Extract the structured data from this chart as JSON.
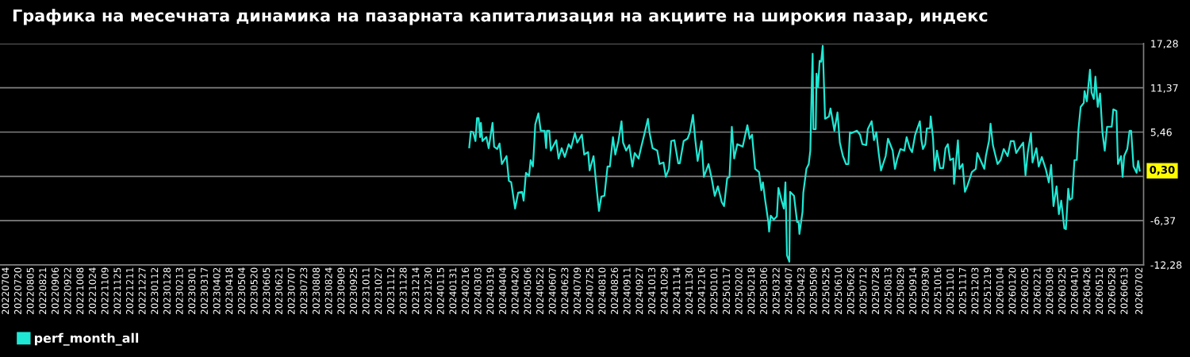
{
  "chart_data": {
    "type": "line",
    "title": "Графика на месечната динамика на пазарната капитализация на акциите на широкия пазар, индекс",
    "x": [
      "2024-02-20",
      "2024-02-22",
      "2024-02-25",
      "2024-02-28",
      "2024-03-01",
      "2024-03-03",
      "2024-03-05",
      "2024-03-06",
      "2024-03-08",
      "2024-03-13",
      "2024-03-16",
      "2024-03-21",
      "2024-03-23",
      "2024-03-27",
      "2024-03-30",
      "2024-04-02",
      "2024-04-08",
      "2024-04-11",
      "2024-04-14",
      "2024-04-19",
      "2024-04-23",
      "2024-04-28",
      "2024-04-30",
      "2024-05-03",
      "2024-05-07",
      "2024-05-09",
      "2024-05-12",
      "2024-05-15",
      "2024-05-19",
      "2024-05-22",
      "2024-05-27",
      "2024-05-29",
      "2024-05-30",
      "2024-06-02",
      "2024-06-04",
      "2024-06-11",
      "2024-06-14",
      "2024-06-18",
      "2024-06-22",
      "2024-06-27",
      "2024-06-30",
      "2024-07-05",
      "2024-07-08",
      "2024-07-14",
      "2024-07-17",
      "2024-07-22",
      "2024-07-24",
      "2024-07-29",
      "2024-08-02",
      "2024-08-05",
      "2024-08-08",
      "2024-08-12",
      "2024-08-16",
      "2024-08-19",
      "2024-08-23",
      "2024-08-26",
      "2024-08-30",
      "2024-09-03",
      "2024-09-05",
      "2024-09-09",
      "2024-09-13",
      "2024-09-17",
      "2024-09-20",
      "2024-09-25",
      "2024-09-28",
      "2024-10-03",
      "2024-10-07",
      "2024-10-09",
      "2024-10-13",
      "2024-10-19",
      "2024-10-22",
      "2024-10-27",
      "2024-10-30",
      "2024-11-03",
      "2024-11-06",
      "2024-11-10",
      "2024-11-15",
      "2024-11-17",
      "2024-11-22",
      "2024-11-27",
      "2024-11-30",
      "2024-12-04",
      "2024-12-07",
      "2024-12-10",
      "2024-12-15",
      "2024-12-18",
      "2024-12-24",
      "2024-12-28",
      "2025-01-01",
      "2025-01-05",
      "2025-01-10",
      "2025-01-13",
      "2025-01-17",
      "2025-01-20",
      "2025-01-23",
      "2025-01-26",
      "2025-01-30",
      "2025-02-06",
      "2025-02-12",
      "2025-02-15",
      "2025-02-18",
      "2025-02-22",
      "2025-02-27",
      "2025-03-02",
      "2025-03-04",
      "2025-03-07",
      "2025-03-11",
      "2025-03-12",
      "2025-03-14",
      "2025-03-18",
      "2025-03-22",
      "2025-03-24",
      "2025-03-28",
      "2025-03-31",
      "2025-04-02",
      "2025-04-04",
      "2025-04-07",
      "2025-04-08",
      "2025-04-13",
      "2025-04-17",
      "2025-04-19",
      "2025-04-20",
      "2025-04-24",
      "2025-04-25",
      "2025-04-29",
      "2025-05-02",
      "2025-05-04",
      "2025-05-06",
      "2025-05-07",
      "2025-05-08",
      "2025-05-11",
      "2025-05-12",
      "2025-05-14",
      "2025-05-16",
      "2025-05-18",
      "2025-05-20",
      "2025-05-23",
      "2025-05-28",
      "2025-05-30",
      "2025-06-01",
      "2025-06-04",
      "2025-06-08",
      "2025-06-11",
      "2025-06-15",
      "2025-06-19",
      "2025-06-22",
      "2025-06-24",
      "2025-06-26",
      "2025-07-03",
      "2025-07-07",
      "2025-07-10",
      "2025-07-15",
      "2025-07-17",
      "2025-07-22",
      "2025-07-25",
      "2025-07-28",
      "2025-07-31",
      "2025-08-03",
      "2025-08-09",
      "2025-08-12",
      "2025-08-18",
      "2025-08-21",
      "2025-08-24",
      "2025-08-28",
      "2025-09-02",
      "2025-09-05",
      "2025-09-09",
      "2025-09-12",
      "2025-09-16",
      "2025-09-22",
      "2025-09-24",
      "2025-09-26",
      "2025-09-29",
      "2025-10-01",
      "2025-10-05",
      "2025-10-06",
      "2025-10-09",
      "2025-10-11",
      "2025-10-14",
      "2025-10-18",
      "2025-10-22",
      "2025-10-25",
      "2025-10-28",
      "2025-10-31",
      "2025-11-04",
      "2025-11-05",
      "2025-11-10",
      "2025-11-12",
      "2025-11-16",
      "2025-11-19",
      "2025-11-22",
      "2025-11-28",
      "2025-12-03",
      "2025-12-05",
      "2025-12-09",
      "2025-12-14",
      "2025-12-16",
      "2025-12-20",
      "2025-12-22",
      "2025-12-25",
      "2025-12-31",
      "2026-01-04",
      "2026-01-08",
      "2026-01-13",
      "2026-01-17",
      "2026-01-21",
      "2026-01-24",
      "2026-01-28",
      "2026-02-02",
      "2026-02-05",
      "2026-02-08",
      "2026-02-12",
      "2026-02-14",
      "2026-02-19",
      "2026-02-22",
      "2026-02-26",
      "2026-03-03",
      "2026-03-07",
      "2026-03-10",
      "2026-03-13",
      "2026-03-17",
      "2026-03-20",
      "2026-03-23",
      "2026-03-27",
      "2026-03-29",
      "2026-04-01",
      "2026-04-03",
      "2026-04-06",
      "2026-04-09",
      "2026-04-12",
      "2026-04-14",
      "2026-04-17",
      "2026-04-21",
      "2026-04-22",
      "2026-04-25",
      "2026-04-29",
      "2026-05-01",
      "2026-05-04",
      "2026-05-06",
      "2026-05-09",
      "2026-05-12",
      "2026-05-15",
      "2026-05-18",
      "2026-05-21",
      "2026-05-27",
      "2026-05-29",
      "2026-06-02",
      "2026-06-04",
      "2026-06-08",
      "2026-06-10",
      "2026-06-12",
      "2026-06-16",
      "2026-06-19",
      "2026-06-21",
      "2026-06-24",
      "2026-06-28",
      "2026-06-30",
      "2026-07-02"
    ],
    "series": [
      {
        "name": "perf_month_all",
        "color": "#1ee8d4",
        "values": [
          3.41,
          5.53,
          5.46,
          4.26,
          7.33,
          7.33,
          4.79,
          6.7,
          4.26,
          4.79,
          3.31,
          6.7,
          3.52,
          3.2,
          3.94,
          1.19,
          2.25,
          -1.04,
          -1.25,
          -4.75,
          -2.63,
          -2.52,
          -3.69,
          0.02,
          -0.4,
          1.72,
          0.87,
          6.49,
          7.97,
          5.64,
          5.64,
          3.31,
          5.64,
          5.64,
          2.99,
          4.37,
          1.93,
          3.31,
          2.14,
          3.84,
          3.31,
          5.32,
          4.05,
          5.11,
          2.46,
          2.78,
          0.34,
          2.25,
          -2.1,
          -5.07,
          -3.16,
          -3.05,
          0.87,
          0.87,
          4.79,
          2.46,
          4.26,
          6.91,
          4.05,
          2.99,
          3.73,
          0.87,
          2.67,
          1.93,
          3.31,
          5.43,
          7.23,
          5.43,
          3.31,
          2.99,
          1.19,
          1.4,
          -0.51,
          0.55,
          4.26,
          4.37,
          1.29,
          1.29,
          4.26,
          4.58,
          5.43,
          7.76,
          4.37,
          1.61,
          4.26,
          -0.51,
          1.19,
          -0.72,
          -3.05,
          -1.78,
          -3.9,
          -4.43,
          -0.72,
          -0.51,
          6.17,
          1.93,
          3.84,
          3.52,
          6.38,
          4.58,
          5.11,
          0.55,
          0.13,
          -2.31,
          -1.25,
          -3.69,
          -6.55,
          -7.82,
          -5.7,
          -6.23,
          -5.81,
          -1.99,
          -3.69,
          -4.75,
          -1.25,
          -11.0,
          -11.85,
          -2.52,
          -3.05,
          -6.55,
          -6.55,
          -8.14,
          -5.17,
          -2.63,
          0.55,
          1.19,
          2.99,
          12.21,
          15.92,
          5.85,
          5.85,
          13.27,
          11.47,
          14.97,
          14.86,
          16.98,
          7.23,
          7.55,
          8.61,
          7.44,
          5.64,
          8.08,
          4.05,
          2.25,
          1.19,
          1.19,
          5.43,
          5.32,
          5.64,
          5.11,
          3.84,
          3.73,
          5.85,
          6.91,
          4.37,
          5.43,
          2.67,
          0.34,
          2.25,
          4.58,
          2.99,
          0.55,
          1.93,
          3.2,
          2.99,
          4.79,
          3.31,
          2.78,
          5.11,
          6.91,
          4.37,
          3.2,
          3.84,
          5.96,
          5.96,
          7.55,
          4.58,
          0.34,
          2.99,
          0.66,
          0.66,
          3.31,
          3.84,
          1.72,
          1.93,
          -1.46,
          4.37,
          0.55,
          1.19,
          -2.52,
          -1.78,
          0.13,
          0.55,
          2.67,
          1.72,
          0.55,
          2.25,
          4.26,
          6.59,
          3.73,
          1.19,
          1.72,
          3.2,
          2.25,
          4.26,
          4.26,
          2.67,
          3.31,
          4.05,
          -0.3,
          2.78,
          5.32,
          1.4,
          3.31,
          0.87,
          2.14,
          0.55,
          -1.25,
          1.08,
          -4.43,
          -1.78,
          -5.49,
          -3.69,
          -7.4,
          -7.51,
          -2.1,
          -3.58,
          -3.37,
          1.72,
          1.72,
          5.64,
          8.82,
          9.35,
          10.94,
          9.56,
          13.8,
          10.73,
          9.88,
          12.85,
          8.82,
          10.62,
          5.43,
          2.99,
          6.17,
          6.17,
          8.5,
          8.29,
          1.19,
          2.25,
          -0.51,
          2.25,
          3.2,
          5.64,
          5.64,
          0.87,
          0.02,
          1.61,
          0.3
        ]
      }
    ],
    "xlim": [
      "2022-06-26",
      "2026-07-07"
    ],
    "xticks": [
      {
        "value": "2022-07-04",
        "label": "20220704"
      },
      {
        "value": "2022-07-20",
        "label": "20220720"
      },
      {
        "value": "2022-08-05",
        "label": "20220805"
      },
      {
        "value": "2022-08-21",
        "label": "20220821"
      },
      {
        "value": "2022-09-06",
        "label": "20220906"
      },
      {
        "value": "2022-09-22",
        "label": "20220922"
      },
      {
        "value": "2022-10-08",
        "label": "20221008"
      },
      {
        "value": "2022-10-24",
        "label": "20221024"
      },
      {
        "value": "2022-11-09",
        "label": "20221109"
      },
      {
        "value": "2022-11-25",
        "label": "20221125"
      },
      {
        "value": "2022-12-11",
        "label": "20221211"
      },
      {
        "value": "2022-12-27",
        "label": "20221227"
      },
      {
        "value": "2023-01-12",
        "label": "20230112"
      },
      {
        "value": "2023-01-28",
        "label": "20230128"
      },
      {
        "value": "2023-02-13",
        "label": "20230213"
      },
      {
        "value": "2023-03-01",
        "label": "20230301"
      },
      {
        "value": "2023-03-17",
        "label": "20230317"
      },
      {
        "value": "2023-04-02",
        "label": "20230402"
      },
      {
        "value": "2023-04-18",
        "label": "20230418"
      },
      {
        "value": "2023-05-04",
        "label": "20230504"
      },
      {
        "value": "2023-05-20",
        "label": "20230520"
      },
      {
        "value": "2023-06-05",
        "label": "20230605"
      },
      {
        "value": "2023-06-21",
        "label": "20230621"
      },
      {
        "value": "2023-07-07",
        "label": "20230707"
      },
      {
        "value": "2023-07-23",
        "label": "20230723"
      },
      {
        "value": "2023-08-08",
        "label": "20230808"
      },
      {
        "value": "2023-08-24",
        "label": "20230824"
      },
      {
        "value": "2023-09-09",
        "label": "20230909"
      },
      {
        "value": "2023-09-25",
        "label": "20230925"
      },
      {
        "value": "2023-10-11",
        "label": "20231011"
      },
      {
        "value": "2023-10-27",
        "label": "20231027"
      },
      {
        "value": "2023-11-12",
        "label": "20231112"
      },
      {
        "value": "2023-11-28",
        "label": "20231128"
      },
      {
        "value": "2023-12-14",
        "label": "20231214"
      },
      {
        "value": "2023-12-30",
        "label": "20231230"
      },
      {
        "value": "2024-01-15",
        "label": "20240115"
      },
      {
        "value": "2024-01-31",
        "label": "20240131"
      },
      {
        "value": "2024-02-16",
        "label": "20240216"
      },
      {
        "value": "2024-03-03",
        "label": "20240303"
      },
      {
        "value": "2024-03-19",
        "label": "20240319"
      },
      {
        "value": "2024-04-04",
        "label": "20240404"
      },
      {
        "value": "2024-04-20",
        "label": "20240420"
      },
      {
        "value": "2024-05-06",
        "label": "20240506"
      },
      {
        "value": "2024-05-22",
        "label": "20240522"
      },
      {
        "value": "2024-06-07",
        "label": "20240607"
      },
      {
        "value": "2024-06-23",
        "label": "20240623"
      },
      {
        "value": "2024-07-09",
        "label": "20240709"
      },
      {
        "value": "2024-07-25",
        "label": "20240725"
      },
      {
        "value": "2024-08-10",
        "label": "20240810"
      },
      {
        "value": "2024-08-26",
        "label": "20240826"
      },
      {
        "value": "2024-09-11",
        "label": "20240911"
      },
      {
        "value": "2024-09-27",
        "label": "20240927"
      },
      {
        "value": "2024-10-13",
        "label": "20241013"
      },
      {
        "value": "2024-10-29",
        "label": "20241029"
      },
      {
        "value": "2024-11-14",
        "label": "20241114"
      },
      {
        "value": "2024-11-30",
        "label": "20241130"
      },
      {
        "value": "2024-12-16",
        "label": "20241216"
      },
      {
        "value": "2025-01-01",
        "label": "20250101"
      },
      {
        "value": "2025-01-17",
        "label": "20250117"
      },
      {
        "value": "2025-02-02",
        "label": "20250202"
      },
      {
        "value": "2025-02-18",
        "label": "20250218"
      },
      {
        "value": "2025-03-06",
        "label": "20250306"
      },
      {
        "value": "2025-03-22",
        "label": "20250322"
      },
      {
        "value": "2025-04-07",
        "label": "20250407"
      },
      {
        "value": "2025-04-23",
        "label": "20250423"
      },
      {
        "value": "2025-05-09",
        "label": "20250509"
      },
      {
        "value": "2025-05-25",
        "label": "20250525"
      },
      {
        "value": "2025-06-10",
        "label": "20250610"
      },
      {
        "value": "2025-06-26",
        "label": "20250626"
      },
      {
        "value": "2025-07-12",
        "label": "20250712"
      },
      {
        "value": "2025-07-28",
        "label": "20250728"
      },
      {
        "value": "2025-08-13",
        "label": "20250813"
      },
      {
        "value": "2025-08-29",
        "label": "20250829"
      },
      {
        "value": "2025-09-14",
        "label": "20250914"
      },
      {
        "value": "2025-09-30",
        "label": "20250930"
      },
      {
        "value": "2025-10-16",
        "label": "20251016"
      },
      {
        "value": "2025-11-01",
        "label": "20251101"
      },
      {
        "value": "2025-11-17",
        "label": "20251117"
      },
      {
        "value": "2025-12-03",
        "label": "20251203"
      },
      {
        "value": "2025-12-19",
        "label": "20251219"
      },
      {
        "value": "2026-01-04",
        "label": "20260104"
      },
      {
        "value": "2026-01-20",
        "label": "20260120"
      },
      {
        "value": "2026-02-05",
        "label": "20260205"
      },
      {
        "value": "2026-02-21",
        "label": "20260221"
      },
      {
        "value": "2026-03-09",
        "label": "20260309"
      },
      {
        "value": "2026-03-25",
        "label": "20260325"
      },
      {
        "value": "2026-04-10",
        "label": "20260410"
      },
      {
        "value": "2026-04-26",
        "label": "20260426"
      },
      {
        "value": "2026-05-12",
        "label": "20260512"
      },
      {
        "value": "2026-05-28",
        "label": "20260528"
      },
      {
        "value": "2026-06-13",
        "label": "20260613"
      },
      {
        "value": "2026-07-02",
        "label": "20260702"
      }
    ],
    "ylim": [
      -12.28,
      17.28
    ],
    "yticks": [
      {
        "value": -12.28,
        "label": "-12,28"
      },
      {
        "value": -6.37,
        "label": "-6,37"
      },
      {
        "value": -0.46,
        "label": null
      },
      {
        "value": 5.46,
        "label": "5,46"
      },
      {
        "value": 11.37,
        "label": "11,37"
      },
      {
        "value": 17.28,
        "label": "17,28"
      }
    ],
    "grid": "y",
    "legend": "bottom left",
    "marker": "none",
    "line_style": "solid",
    "annotations": [
      {
        "text": "0,30",
        "x": "2026-07-02",
        "y": 0.3
      }
    ]
  }
}
